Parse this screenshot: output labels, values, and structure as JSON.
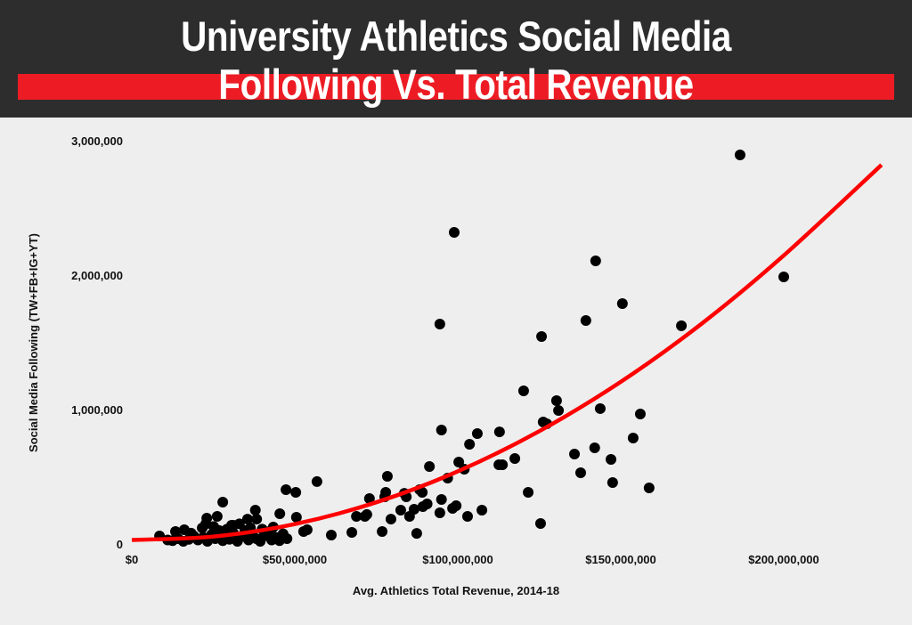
{
  "title_line1": "University Athletics Social Media",
  "title_line2": "Following Vs. Total Revenue",
  "colors": {
    "header_bg": "#2d2d2d",
    "title_bar": "#ed1c24",
    "trend": "#ff0000",
    "points": "#000000",
    "plot_bg": "#eeeeee"
  },
  "chart_data": {
    "type": "scatter",
    "xlabel": "Avg. Athletics Total Revenue, 2014-18",
    "ylabel": "Social Media Following (TW+FB+IG+YT)",
    "xlim": [
      0,
      230000000
    ],
    "ylim": [
      0,
      3000000
    ],
    "grid": false,
    "x_ticks": [
      {
        "value": 0,
        "label": "$0"
      },
      {
        "value": 50000000,
        "label": "$50,000,000"
      },
      {
        "value": 100000000,
        "label": "$100,000,000"
      },
      {
        "value": 150000000,
        "label": "$150,000,000"
      },
      {
        "value": 200000000,
        "label": "$200,000,000"
      }
    ],
    "y_ticks": [
      {
        "value": 0,
        "label": "0"
      },
      {
        "value": 1000000,
        "label": "1,000,000"
      },
      {
        "value": 2000000,
        "label": "2,000,000"
      },
      {
        "value": 3000000,
        "label": "3,000,000"
      }
    ],
    "points": [
      [
        186600000,
        2894000
      ],
      [
        200000000,
        1987000
      ],
      [
        98900000,
        2318000
      ],
      [
        142300000,
        2106000
      ],
      [
        150500000,
        1788000
      ],
      [
        139300000,
        1662000
      ],
      [
        168600000,
        1623000
      ],
      [
        94500000,
        1636000
      ],
      [
        125700000,
        1543000
      ],
      [
        120200000,
        1139000
      ],
      [
        130300000,
        1066000
      ],
      [
        130900000,
        993000
      ],
      [
        126200000,
        907000
      ],
      [
        127300000,
        894000
      ],
      [
        143700000,
        1007000
      ],
      [
        156000000,
        967000
      ],
      [
        153800000,
        788000
      ],
      [
        142000000,
        715000
      ],
      [
        147000000,
        629000
      ],
      [
        135800000,
        669000
      ],
      [
        137700000,
        530000
      ],
      [
        147500000,
        457000
      ],
      [
        158700000,
        417000
      ],
      [
        121600000,
        384000
      ],
      [
        125400000,
        152000
      ],
      [
        112800000,
        834000
      ],
      [
        106000000,
        821000
      ],
      [
        103600000,
        742000
      ],
      [
        100300000,
        609000
      ],
      [
        102000000,
        556000
      ],
      [
        96900000,
        490000
      ],
      [
        95000000,
        848000
      ],
      [
        91300000,
        576000
      ],
      [
        117500000,
        636000
      ],
      [
        112600000,
        589000
      ],
      [
        113700000,
        589000
      ],
      [
        107400000,
        252000
      ],
      [
        103000000,
        205000
      ],
      [
        99500000,
        285000
      ],
      [
        98400000,
        265000
      ],
      [
        95000000,
        331000
      ],
      [
        94500000,
        232000
      ],
      [
        89300000,
        278000
      ],
      [
        90600000,
        298000
      ],
      [
        87400000,
        79000
      ],
      [
        88300000,
        404000
      ],
      [
        89100000,
        384000
      ],
      [
        83600000,
        377000
      ],
      [
        84200000,
        351000
      ],
      [
        78400000,
        503000
      ],
      [
        77900000,
        384000
      ],
      [
        77600000,
        351000
      ],
      [
        72900000,
        338000
      ],
      [
        72100000,
        219000
      ],
      [
        71500000,
        205000
      ],
      [
        68900000,
        205000
      ],
      [
        67500000,
        86000
      ],
      [
        79500000,
        185000
      ],
      [
        76800000,
        93000
      ],
      [
        82500000,
        252000
      ],
      [
        85200000,
        205000
      ],
      [
        86600000,
        258000
      ],
      [
        61200000,
        66000
      ],
      [
        56800000,
        464000
      ],
      [
        50300000,
        384000
      ],
      [
        47300000,
        404000
      ],
      [
        50500000,
        199000
      ],
      [
        45400000,
        225000
      ],
      [
        53800000,
        106000
      ],
      [
        52700000,
        93000
      ],
      [
        27900000,
        311000
      ],
      [
        23000000,
        192000
      ],
      [
        26200000,
        205000
      ],
      [
        37900000,
        252000
      ],
      [
        35500000,
        185000
      ],
      [
        38300000,
        185000
      ],
      [
        31100000,
        139000
      ],
      [
        43400000,
        126000
      ],
      [
        8500000,
        60000
      ],
      [
        13400000,
        93000
      ],
      [
        16100000,
        106000
      ],
      [
        21600000,
        119000
      ],
      [
        30600000,
        139000
      ],
      [
        11000000,
        30000
      ],
      [
        12500000,
        25000
      ],
      [
        14200000,
        40000
      ],
      [
        15800000,
        20000
      ],
      [
        17500000,
        35000
      ],
      [
        19000000,
        60000
      ],
      [
        20300000,
        30000
      ],
      [
        21900000,
        50000
      ],
      [
        23200000,
        20000
      ],
      [
        24500000,
        70000
      ],
      [
        25600000,
        40000
      ],
      [
        26800000,
        100000
      ],
      [
        27900000,
        25000
      ],
      [
        28800000,
        60000
      ],
      [
        29900000,
        35000
      ],
      [
        31200000,
        80000
      ],
      [
        32400000,
        20000
      ],
      [
        33600000,
        55000
      ],
      [
        34700000,
        100000
      ],
      [
        35800000,
        30000
      ],
      [
        36900000,
        70000
      ],
      [
        38200000,
        40000
      ],
      [
        39400000,
        20000
      ],
      [
        40600000,
        60000
      ],
      [
        41800000,
        90000
      ],
      [
        42900000,
        30000
      ],
      [
        44100000,
        50000
      ],
      [
        45300000,
        25000
      ],
      [
        46400000,
        75000
      ],
      [
        47600000,
        40000
      ],
      [
        18200000,
        80000
      ],
      [
        22700000,
        150000
      ],
      [
        25100000,
        130000
      ],
      [
        29200000,
        110000
      ],
      [
        33000000,
        150000
      ],
      [
        36400000,
        120000
      ],
      [
        40000000,
        110000
      ]
    ],
    "trend_line": {
      "type": "polynomial",
      "x": [
        0,
        25000000,
        50000000,
        75000000,
        100000000,
        125000000,
        150000000,
        175000000,
        200000000,
        230000000
      ],
      "y": [
        30000,
        55000,
        148000,
        310000,
        540000,
        839000,
        1206000,
        1642000,
        2146000,
        2820000
      ]
    }
  }
}
